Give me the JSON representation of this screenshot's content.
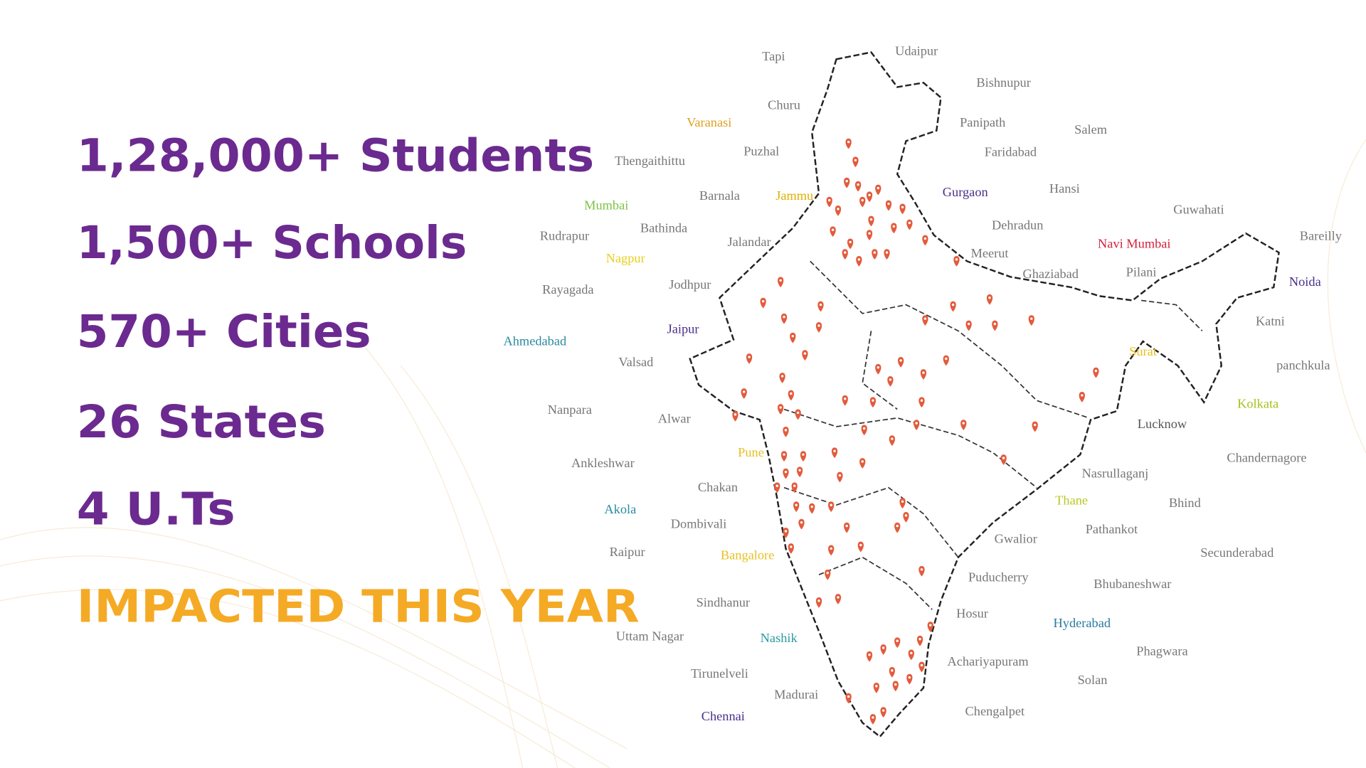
{
  "stats": [
    "1,28,000+ Students",
    "1,500+ Schools",
    "570+ Cities",
    "26 States",
    "4 U.Ts"
  ],
  "tagline": "IMPACTED THIS YEAR",
  "map": {
    "labels": [
      {
        "text": "Tapi",
        "color": "#777777"
      },
      {
        "text": "Udaipur",
        "color": "#777777"
      },
      {
        "text": "Bishnupur",
        "color": "#777777"
      },
      {
        "text": "Churu",
        "color": "#777777"
      },
      {
        "text": "Varanasi",
        "color": "#e0a020"
      },
      {
        "text": "Panipath",
        "color": "#777777"
      },
      {
        "text": "Salem",
        "color": "#777777"
      },
      {
        "text": "Thengaithittu",
        "color": "#777777"
      },
      {
        "text": "Puzhal",
        "color": "#777777"
      },
      {
        "text": "Faridabad",
        "color": "#777777"
      },
      {
        "text": "Barnala",
        "color": "#777777"
      },
      {
        "text": "Jammu",
        "color": "#e0b000"
      },
      {
        "text": "Gurgaon",
        "color": "#4a2f8a"
      },
      {
        "text": "Hansi",
        "color": "#777777"
      },
      {
        "text": "Guwahati",
        "color": "#777777"
      },
      {
        "text": "Mumbai",
        "color": "#7cc242"
      },
      {
        "text": "Bathinda",
        "color": "#777777"
      },
      {
        "text": "Dehradun",
        "color": "#777777"
      },
      {
        "text": "Navi Mumbai",
        "color": "#d4203c"
      },
      {
        "text": "Bareilly",
        "color": "#777777"
      },
      {
        "text": "Rudrapur",
        "color": "#777777"
      },
      {
        "text": "Nagpur",
        "color": "#e8d020"
      },
      {
        "text": "Jalandar",
        "color": "#777777"
      },
      {
        "text": "Meerut",
        "color": "#777777"
      },
      {
        "text": "Ghaziabad",
        "color": "#777777"
      },
      {
        "text": "Pilani",
        "color": "#777777"
      },
      {
        "text": "Noida",
        "color": "#4a2f8a"
      },
      {
        "text": "Rayagada",
        "color": "#777777"
      },
      {
        "text": "Jodhpur",
        "color": "#777777"
      },
      {
        "text": "Ahmedabad",
        "color": "#2a8aa0"
      },
      {
        "text": "Jaipur",
        "color": "#4a2f8a"
      },
      {
        "text": "Katni",
        "color": "#777777"
      },
      {
        "text": "Surat",
        "color": "#e8c020"
      },
      {
        "text": "Valsad",
        "color": "#777777"
      },
      {
        "text": "panchkula",
        "color": "#777777"
      },
      {
        "text": "Nanpara",
        "color": "#777777"
      },
      {
        "text": "Alwar",
        "color": "#777777"
      },
      {
        "text": "Kolkata",
        "color": "#a8c020"
      },
      {
        "text": "Lucknow",
        "color": "#555555"
      },
      {
        "text": "Chandernagore",
        "color": "#777777"
      },
      {
        "text": "Ankleshwar",
        "color": "#777777"
      },
      {
        "text": "Pune",
        "color": "#e8c020"
      },
      {
        "text": "Nasrullaganj",
        "color": "#777777"
      },
      {
        "text": "Chakan",
        "color": "#777777"
      },
      {
        "text": "Akola",
        "color": "#2a8aa0"
      },
      {
        "text": "Thane",
        "color": "#b8c820"
      },
      {
        "text": "Bhind",
        "color": "#777777"
      },
      {
        "text": "Dombivali",
        "color": "#777777"
      },
      {
        "text": "Pathankot",
        "color": "#777777"
      },
      {
        "text": "Raipur",
        "color": "#777777"
      },
      {
        "text": "Bangalore",
        "color": "#e8c020"
      },
      {
        "text": "Gwalior",
        "color": "#777777"
      },
      {
        "text": "Secunderabad",
        "color": "#777777"
      },
      {
        "text": "Puducherry",
        "color": "#777777"
      },
      {
        "text": "Bhubaneshwar",
        "color": "#777777"
      },
      {
        "text": "Sindhanur",
        "color": "#777777"
      },
      {
        "text": "Hosur",
        "color": "#777777"
      },
      {
        "text": "Hyderabad",
        "color": "#2a7aa0"
      },
      {
        "text": "Uttam Nagar",
        "color": "#777777"
      },
      {
        "text": "Nashik",
        "color": "#2a9aa0"
      },
      {
        "text": "Phagwara",
        "color": "#777777"
      },
      {
        "text": "Achariyapuram",
        "color": "#777777"
      },
      {
        "text": "Tirunelveli",
        "color": "#777777"
      },
      {
        "text": "Solan",
        "color": "#777777"
      },
      {
        "text": "Madurai",
        "color": "#777777"
      },
      {
        "text": "Chengalpet",
        "color": "#777777"
      },
      {
        "text": "Chennai",
        "color": "#4a2f8a"
      }
    ]
  }
}
